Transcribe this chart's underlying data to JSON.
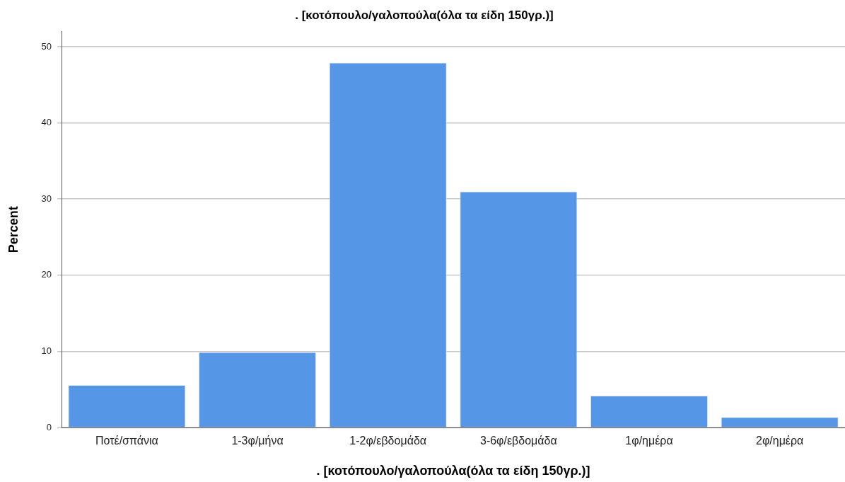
{
  "chart_data": {
    "type": "bar",
    "title": ". [κοτόπουλο/γαλοπούλα(όλα τα είδη 150γρ.)]",
    "xlabel": ". [κοτόπουλο/γαλοπούλα(όλα τα είδη 150γρ.)]",
    "ylabel": "Percent",
    "categories": [
      "Ποτέ/σπάνια",
      "1-3φ/μήνα",
      "1-2φ/εβδομάδα",
      "3-6φ/εβδομάδα",
      "1φ/ημέρα",
      "2φ/ημέρα"
    ],
    "values": [
      5.6,
      9.9,
      47.9,
      31.0,
      4.2,
      1.4
    ],
    "color": "#5596e6",
    "ylim": [
      0,
      52
    ],
    "yticks": [
      0,
      10,
      20,
      30,
      40,
      50
    ],
    "grid": "y",
    "legend": false
  }
}
